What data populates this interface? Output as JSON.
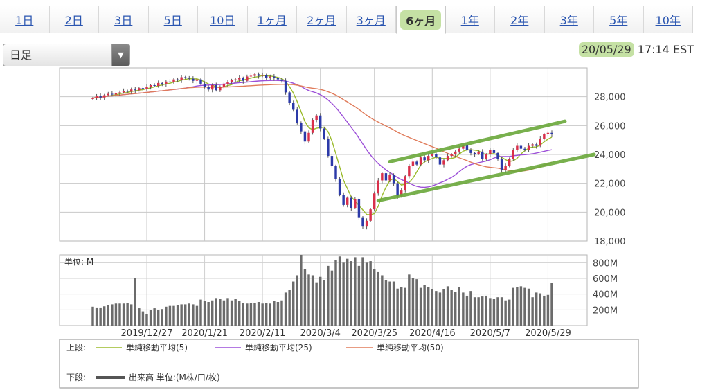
{
  "tabs": [
    {
      "label": "1日",
      "active": false
    },
    {
      "label": "2日",
      "active": false
    },
    {
      "label": "3日",
      "active": false
    },
    {
      "label": "5日",
      "active": false
    },
    {
      "label": "10日",
      "active": false
    },
    {
      "label": "1ヶ月",
      "active": false
    },
    {
      "label": "2ヶ月",
      "active": false
    },
    {
      "label": "3ヶ月",
      "active": false
    },
    {
      "label": "6ヶ月",
      "active": true
    },
    {
      "label": "1年",
      "active": false
    },
    {
      "label": "2年",
      "active": false
    },
    {
      "label": "3年",
      "active": false
    },
    {
      "label": "5年",
      "active": false
    },
    {
      "label": "10年",
      "active": false
    }
  ],
  "period_select": {
    "value": "日足"
  },
  "timestamp": {
    "date": "20/05/29",
    "time": "17:14 EST"
  },
  "colors": {
    "up": "#d9304a",
    "down": "#2c3aa8",
    "ma5": "#9bbb2c",
    "ma25": "#9c4fd8",
    "ma50": "#e07b5a",
    "volume": "#6b6b6b",
    "trendline": "#6aa83a",
    "tab_link": "#2a55b0"
  },
  "icons": {
    "dropdown": "triangle-down-icon"
  },
  "chart_data": {
    "type": "candlestick",
    "price_ylim": [
      18000,
      30000
    ],
    "price_ticks": [
      "28,000",
      "26,000",
      "24,000",
      "22,000",
      "20,000",
      "18,000"
    ],
    "volume_unit_label": "単位: M",
    "volume_ylim": [
      0,
      900
    ],
    "volume_ticks": [
      "800M",
      "600M",
      "400M",
      "200M"
    ],
    "x_tick_labels": [
      "2019/12/27",
      "2020/1/21",
      "2020/2/11",
      "2020/3/4",
      "2020/3/25",
      "2020/4/16",
      "2020/5/7",
      "2020/5/29"
    ],
    "upper_legend_label": "上段:",
    "lower_legend_label": "下段:",
    "series": [
      {
        "name": "単純移動平均(5)",
        "key": "ma5"
      },
      {
        "name": "単純移動平均(25)",
        "key": "ma25"
      },
      {
        "name": "単純移動平均(50)",
        "key": "ma50"
      }
    ],
    "volume_series_name": "出来高 単位:(M株/口/枚)",
    "close": [
      27900,
      28050,
      27950,
      28100,
      28200,
      28150,
      28250,
      28300,
      28400,
      28350,
      28500,
      28450,
      28600,
      28550,
      28700,
      28800,
      28750,
      28950,
      28900,
      29050,
      29000,
      29200,
      29150,
      29350,
      29300,
      29250,
      29100,
      29200,
      28900,
      28700,
      28500,
      28800,
      28450,
      28700,
      28900,
      29000,
      29150,
      29200,
      29300,
      29100,
      29400,
      29450,
      29550,
      29450,
      29500,
      29300,
      29400,
      29300,
      29200,
      29100,
      28300,
      27600,
      27100,
      26200,
      25600,
      24900,
      25500,
      26400,
      26700,
      25800,
      25100,
      23900,
      23200,
      22300,
      21200,
      20500,
      21000,
      20300,
      20900,
      19600,
      19000,
      19400,
      20200,
      21300,
      22200,
      22700,
      22200,
      22600,
      22000,
      21100,
      21500,
      22500,
      23200,
      23500,
      23300,
      23800,
      23600,
      23900,
      24000,
      23800,
      23300,
      23600,
      23900,
      24000,
      24200,
      24400,
      24650,
      24300,
      24100,
      24050,
      24200,
      23700,
      24000,
      24300,
      24100,
      23700,
      22900,
      23200,
      23700,
      24300,
      24600,
      24400,
      24300,
      24600,
      24700,
      24600,
      25100,
      25400,
      25500,
      25400
    ],
    "volume": [
      240,
      230,
      230,
      245,
      260,
      270,
      280,
      280,
      280,
      290,
      270,
      600,
      220,
      180,
      150,
      200,
      220,
      200,
      210,
      240,
      250,
      250,
      260,
      270,
      270,
      280,
      270,
      250,
      330,
      310,
      300,
      320,
      350,
      340,
      320,
      350,
      320,
      340,
      310,
      290,
      280,
      290,
      290,
      300,
      280,
      290,
      280,
      310,
      300,
      320,
      420,
      450,
      560,
      640,
      900,
      720,
      650,
      640,
      550,
      620,
      580,
      760,
      700,
      830,
      880,
      800,
      850,
      820,
      870,
      760,
      870,
      800,
      820,
      720,
      680,
      640,
      580,
      560,
      560,
      470,
      490,
      480,
      650,
      600,
      590,
      480,
      520,
      490,
      460,
      440,
      420,
      460,
      500,
      450,
      430,
      490,
      420,
      380,
      440,
      360,
      360,
      370,
      380,
      350,
      340,
      360,
      360,
      320,
      330,
      480,
      490,
      500,
      480,
      470,
      360,
      420,
      410,
      380,
      390,
      540
    ]
  }
}
